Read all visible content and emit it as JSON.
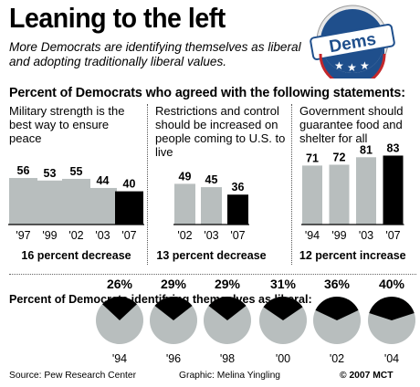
{
  "title": "Leaning to the left",
  "subtitle": "More Democrats are identifying themselves as liberal and adopting traditionally liberal values.",
  "badge": {
    "text": "Dems",
    "colors": {
      "blue": "#1f4f8c",
      "red": "#c3272b",
      "ring": "#ffffff"
    }
  },
  "section_heading": "Percent of Democrats who agreed with the following statements:",
  "colors": {
    "gray": "#b8bebe",
    "black": "#000000",
    "baseline": "#000000"
  },
  "chart_data": [
    {
      "type": "bar",
      "title": "Military strength is the best way to ensure peace",
      "categories": [
        "'97",
        "'99",
        "'02",
        "'03",
        "'07"
      ],
      "values": [
        56,
        53,
        55,
        44,
        40
      ],
      "ylim": [
        0,
        100
      ],
      "footnote": "16 percent decrease"
    },
    {
      "type": "bar",
      "title": "Restrictions and control should be increased on people coming to U.S. to live",
      "categories": [
        "'02",
        "'03",
        "'07"
      ],
      "values": [
        49,
        45,
        36
      ],
      "ylim": [
        0,
        100
      ],
      "footnote": "13 percent decrease"
    },
    {
      "type": "bar",
      "title": "Government should guarantee food and shelter for all",
      "categories": [
        "'94",
        "'99",
        "'03",
        "'07"
      ],
      "values": [
        71,
        72,
        81,
        83
      ],
      "ylim": [
        0,
        100
      ],
      "footnote": "12 percent increase"
    },
    {
      "type": "pie",
      "title": "Percent of Democrats identifying themselves as liberal:",
      "categories": [
        "'94",
        "'96",
        "'98",
        "'00",
        "'02",
        "'04"
      ],
      "labels": [
        "26%",
        "29%",
        "29%",
        "31%",
        "36%",
        "40%"
      ],
      "values": [
        26,
        29,
        29,
        31,
        36,
        40
      ]
    }
  ],
  "footer": {
    "source": "Source: Pew Research Center",
    "graphic": "Graphic: Melina Yingling",
    "copyright": "© 2007 MCT"
  }
}
